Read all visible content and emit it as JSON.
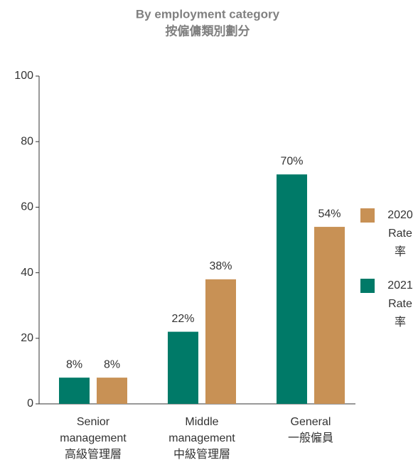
{
  "chart_data": {
    "type": "bar",
    "title": "By employment category",
    "subtitle": "按僱傭類別劃分",
    "categories": [
      [
        "Senior",
        "management",
        "高級管理層"
      ],
      [
        "Middle",
        "management",
        "中級管理層"
      ],
      [
        "General",
        "一般僱員"
      ]
    ],
    "series": [
      {
        "name": [
          "2021",
          "Rate",
          "率"
        ],
        "color": "#007a68",
        "values": [
          8,
          22,
          70
        ],
        "value_labels": [
          "8%",
          "22%",
          "70%"
        ]
      },
      {
        "name": [
          "2020",
          "Rate",
          "率"
        ],
        "color": "#c89155",
        "values": [
          8,
          38,
          54
        ],
        "value_labels": [
          "8%",
          "38%",
          "54%"
        ]
      }
    ],
    "ylim": [
      0,
      100
    ],
    "yticks": [
      0,
      20,
      40,
      60,
      80,
      100
    ],
    "grid": false,
    "legend": "right"
  }
}
